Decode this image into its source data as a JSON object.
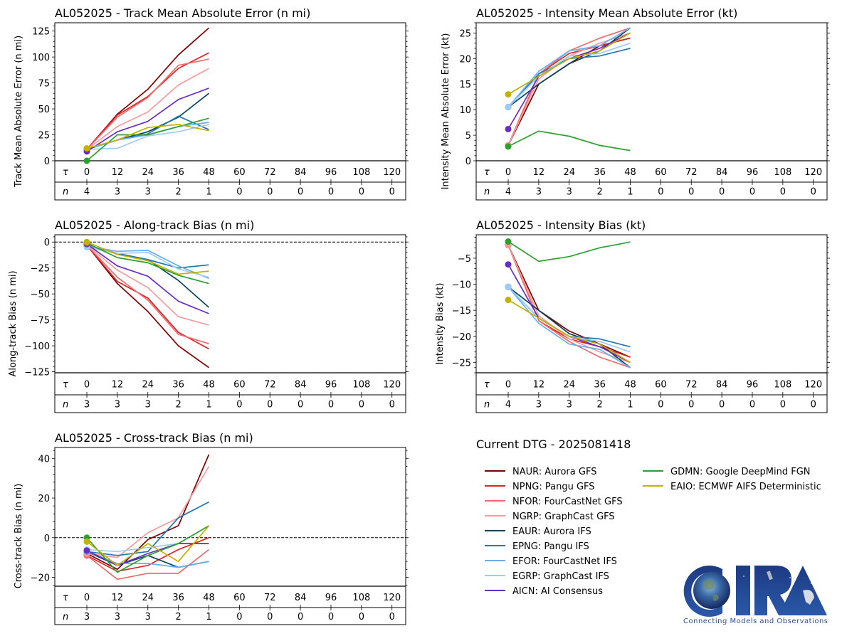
{
  "figure": {
    "legend_title": "Current DTG - 2025081418",
    "logo": {
      "name": "CIRA",
      "tagline": "Connecting Models and Observations"
    }
  },
  "models": [
    {
      "id": "NAUR",
      "label": "NAUR: Aurora GFS",
      "color": "#7f0000"
    },
    {
      "id": "NPNG",
      "label": "NPNG: Pangu GFS",
      "color": "#d62728"
    },
    {
      "id": "NFOR",
      "label": "NFOR: FourCastNet GFS",
      "color": "#f46a6a"
    },
    {
      "id": "NGRP",
      "label": "NGRP: GraphCast GFS",
      "color": "#f79c9c"
    },
    {
      "id": "EAUR",
      "label": "EAUR: Aurora IFS",
      "color": "#08445e"
    },
    {
      "id": "EPNG",
      "label": "EPNG: Pangu IFS",
      "color": "#1f77b4"
    },
    {
      "id": "EFOR",
      "label": "EFOR: FourCastNet IFS",
      "color": "#63aff0"
    },
    {
      "id": "EGRP",
      "label": "EGRP: GraphCast IFS",
      "color": "#9ccbf7"
    },
    {
      "id": "AICN",
      "label": "AICN: AI Consensus",
      "color": "#6a2cc7"
    },
    {
      "id": "GDMN",
      "label": "GDMN: Google DeepMind FGN",
      "color": "#2ca02c"
    },
    {
      "id": "EAIO",
      "label": "EAIO: ECMWF AIFS Deterministic",
      "color": "#c4b000"
    }
  ],
  "chart_data": [
    {
      "id": "track_mae",
      "type": "line",
      "title": "AL052025 - Track Mean Absolute Error (n mi)",
      "xlabel": "τ",
      "ylabel": "Track Mean Absolute Error (n mi)",
      "x": [
        0,
        12,
        24,
        36,
        48
      ],
      "x_ticks": [
        0,
        12,
        24,
        36,
        48,
        60,
        72,
        84,
        96,
        108,
        120
      ],
      "n_label": "n",
      "n_counts": [
        4,
        3,
        3,
        2,
        1,
        0,
        0,
        0,
        0,
        0,
        0
      ],
      "ylim": [
        0,
        133
      ],
      "y_ticks": [
        0,
        25,
        50,
        75,
        100,
        125
      ],
      "zero_line": false,
      "series": [
        {
          "name": "NAUR",
          "values": [
            11,
            45,
            69,
            102,
            128
          ]
        },
        {
          "name": "NPNG",
          "values": [
            11,
            44,
            62,
            89,
            104
          ]
        },
        {
          "name": "NFOR",
          "values": [
            11,
            42,
            61,
            92,
            98
          ]
        },
        {
          "name": "NGRP",
          "values": [
            11,
            33,
            47,
            73,
            89
          ]
        },
        {
          "name": "EAUR",
          "values": [
            11,
            20,
            28,
            42,
            65
          ]
        },
        {
          "name": "EPNG",
          "values": [
            11,
            20,
            26,
            43,
            30
          ]
        },
        {
          "name": "EFOR",
          "values": [
            11,
            20,
            25,
            33,
            37
          ]
        },
        {
          "name": "EGRP",
          "values": [
            11,
            12,
            24,
            28,
            35
          ]
        },
        {
          "name": "AICN",
          "values": [
            9,
            28,
            38,
            59,
            70
          ]
        },
        {
          "name": "GDMN",
          "values": [
            0,
            25,
            25,
            33,
            41
          ]
        },
        {
          "name": "EAIO",
          "values": [
            12,
            20,
            32,
            35,
            29
          ]
        }
      ]
    },
    {
      "id": "intensity_mae",
      "type": "line",
      "title": "AL052025 - Intensity Mean Absolute Error (kt)",
      "xlabel": "τ",
      "ylabel": "Intensity Mean Absolute Error (kt)",
      "x": [
        0,
        12,
        24,
        36,
        48
      ],
      "x_ticks": [
        0,
        12,
        24,
        36,
        48,
        60,
        72,
        84,
        96,
        108,
        120
      ],
      "n_label": "n",
      "n_counts": [
        4,
        3,
        3,
        2,
        1,
        0,
        0,
        0,
        0,
        0,
        0
      ],
      "ylim": [
        0,
        27
      ],
      "y_ticks": [
        0,
        5,
        10,
        15,
        20,
        25
      ],
      "zero_line": false,
      "series": [
        {
          "name": "NAUR",
          "values": [
            3,
            15,
            19,
            22.5,
            24
          ]
        },
        {
          "name": "NPNG",
          "values": [
            3,
            17,
            21,
            22.5,
            24
          ]
        },
        {
          "name": "NFOR",
          "values": [
            3,
            17,
            21.5,
            24,
            26
          ]
        },
        {
          "name": "NGRP",
          "values": [
            3,
            16,
            20.5,
            23,
            25
          ]
        },
        {
          "name": "EAUR",
          "values": [
            10.5,
            15,
            19,
            21.5,
            26
          ]
        },
        {
          "name": "EPNG",
          "values": [
            10.5,
            17,
            20,
            20.5,
            22
          ]
        },
        {
          "name": "EFOR",
          "values": [
            10.5,
            17.5,
            21.5,
            22.5,
            26
          ]
        },
        {
          "name": "EGRP",
          "values": [
            10.5,
            16.5,
            20.5,
            21,
            23
          ]
        },
        {
          "name": "AICN",
          "values": [
            6.2,
            16.5,
            20,
            22,
            25
          ]
        },
        {
          "name": "GDMN",
          "values": [
            2.8,
            5.8,
            4.8,
            3,
            2
          ]
        },
        {
          "name": "EAIO",
          "values": [
            13,
            16.5,
            20,
            21.5,
            25
          ]
        }
      ]
    },
    {
      "id": "along_track_bias",
      "type": "line",
      "title": "AL052025 - Along-track Bias (n mi)",
      "xlabel": "τ",
      "ylabel": "Along-track Bias (n mi)",
      "x": [
        0,
        12,
        24,
        36,
        48
      ],
      "x_ticks": [
        0,
        12,
        24,
        36,
        48,
        60,
        72,
        84,
        96,
        108,
        120
      ],
      "n_label": "n",
      "n_counts": [
        3,
        3,
        3,
        2,
        1,
        0,
        0,
        0,
        0,
        0,
        0
      ],
      "ylim": [
        -126,
        7
      ],
      "y_ticks": [
        -125,
        -100,
        -75,
        -50,
        -25,
        0
      ],
      "zero_line": true,
      "series": [
        {
          "name": "NAUR",
          "values": [
            -3,
            -40,
            -67,
            -100,
            -121
          ]
        },
        {
          "name": "NPNG",
          "values": [
            -3,
            -38,
            -54,
            -87,
            -103
          ]
        },
        {
          "name": "NFOR",
          "values": [
            -3,
            -34,
            -56,
            -89,
            -98
          ]
        },
        {
          "name": "NGRP",
          "values": [
            -3,
            -27,
            -44,
            -72,
            -80
          ]
        },
        {
          "name": "EAUR",
          "values": [
            -3,
            -11,
            -17,
            -37,
            -63
          ]
        },
        {
          "name": "EPNG",
          "values": [
            -3,
            -11,
            -17,
            -25,
            -22
          ]
        },
        {
          "name": "EFOR",
          "values": [
            -4,
            -9,
            -8,
            -23,
            -35
          ]
        },
        {
          "name": "EGRP",
          "values": [
            -5,
            -11,
            -10,
            -26,
            -34
          ]
        },
        {
          "name": "AICN",
          "values": [
            -2,
            -23,
            -33,
            -57,
            -69
          ]
        },
        {
          "name": "GDMN",
          "values": [
            -1,
            -15,
            -20,
            -32,
            -40
          ]
        },
        {
          "name": "EAIO",
          "values": [
            0,
            -12,
            -18,
            -31,
            -28
          ]
        }
      ]
    },
    {
      "id": "intensity_bias",
      "type": "line",
      "title": "AL052025 - Intensity Bias (kt)",
      "xlabel": "τ",
      "ylabel": "Intensity Bias (kt)",
      "x": [
        0,
        12,
        24,
        36,
        48
      ],
      "x_ticks": [
        0,
        12,
        24,
        36,
        48,
        60,
        72,
        84,
        96,
        108,
        120
      ],
      "n_label": "n",
      "n_counts": [
        4,
        3,
        3,
        2,
        1,
        0,
        0,
        0,
        0,
        0,
        0
      ],
      "ylim": [
        -27,
        -0.5
      ],
      "y_ticks": [
        -25,
        -20,
        -15,
        -10,
        -5
      ],
      "zero_line": false,
      "series": [
        {
          "name": "NAUR",
          "values": [
            -2.5,
            -15,
            -19,
            -21.5,
            -24
          ]
        },
        {
          "name": "NPNG",
          "values": [
            -2.5,
            -17,
            -20.5,
            -22,
            -24
          ]
        },
        {
          "name": "NFOR",
          "values": [
            -2.5,
            -17,
            -21,
            -24,
            -26
          ]
        },
        {
          "name": "NGRP",
          "values": [
            -2.5,
            -16,
            -20.5,
            -23,
            -25
          ]
        },
        {
          "name": "EAUR",
          "values": [
            -10.5,
            -15,
            -19.5,
            -21.5,
            -26
          ]
        },
        {
          "name": "EPNG",
          "values": [
            -10.5,
            -16.5,
            -20,
            -20.5,
            -22
          ]
        },
        {
          "name": "EFOR",
          "values": [
            -10.5,
            -17.5,
            -21.5,
            -22.5,
            -26
          ]
        },
        {
          "name": "EGRP",
          "values": [
            -10.5,
            -16.5,
            -20,
            -21,
            -23
          ]
        },
        {
          "name": "AICN",
          "values": [
            -6.2,
            -16.5,
            -20,
            -22,
            -25
          ]
        },
        {
          "name": "GDMN",
          "values": [
            -1.8,
            -5.6,
            -4.7,
            -3,
            -1.9
          ]
        },
        {
          "name": "EAIO",
          "values": [
            -13,
            -16.5,
            -20,
            -21.5,
            -25
          ]
        }
      ]
    },
    {
      "id": "cross_track_bias",
      "type": "line",
      "title": "AL052025 - Cross-track Bias (n mi)",
      "xlabel": "τ",
      "ylabel": "Cross-track Bias (n mi)",
      "x": [
        0,
        12,
        24,
        36,
        48
      ],
      "x_ticks": [
        0,
        12,
        24,
        36,
        48,
        60,
        72,
        84,
        96,
        108,
        120
      ],
      "n_label": "n",
      "n_counts": [
        3,
        3,
        3,
        2,
        1,
        0,
        0,
        0,
        0,
        0,
        0
      ],
      "ylim": [
        -24.5,
        45.5
      ],
      "y_ticks": [
        -20,
        0,
        20,
        40
      ],
      "zero_line": true,
      "series": [
        {
          "name": "NAUR",
          "values": [
            -8,
            -16,
            -1,
            6,
            42
          ]
        },
        {
          "name": "NPNG",
          "values": [
            -9,
            -17,
            -14,
            -6,
            0
          ]
        },
        {
          "name": "NFOR",
          "values": [
            -9,
            -21,
            -18,
            -18,
            -6
          ]
        },
        {
          "name": "NGRP",
          "values": [
            -8,
            -10,
            2.5,
            10,
            36
          ]
        },
        {
          "name": "EAUR",
          "values": [
            -7,
            -14,
            -9,
            -15,
            -12
          ]
        },
        {
          "name": "EPNG",
          "values": [
            -7,
            -9,
            -7,
            10,
            18
          ]
        },
        {
          "name": "EFOR",
          "values": [
            -7,
            -13,
            -13,
            -15,
            -12
          ]
        },
        {
          "name": "EGRP",
          "values": [
            -6,
            -7,
            -5,
            -3,
            -3
          ]
        },
        {
          "name": "AICN",
          "values": [
            -6.5,
            -14,
            -8,
            -3,
            -3
          ]
        },
        {
          "name": "GDMN",
          "values": [
            0,
            -17.5,
            -9,
            -3,
            6
          ]
        },
        {
          "name": "EAIO",
          "values": [
            -2,
            -14,
            -3,
            -12,
            6
          ]
        }
      ]
    }
  ]
}
